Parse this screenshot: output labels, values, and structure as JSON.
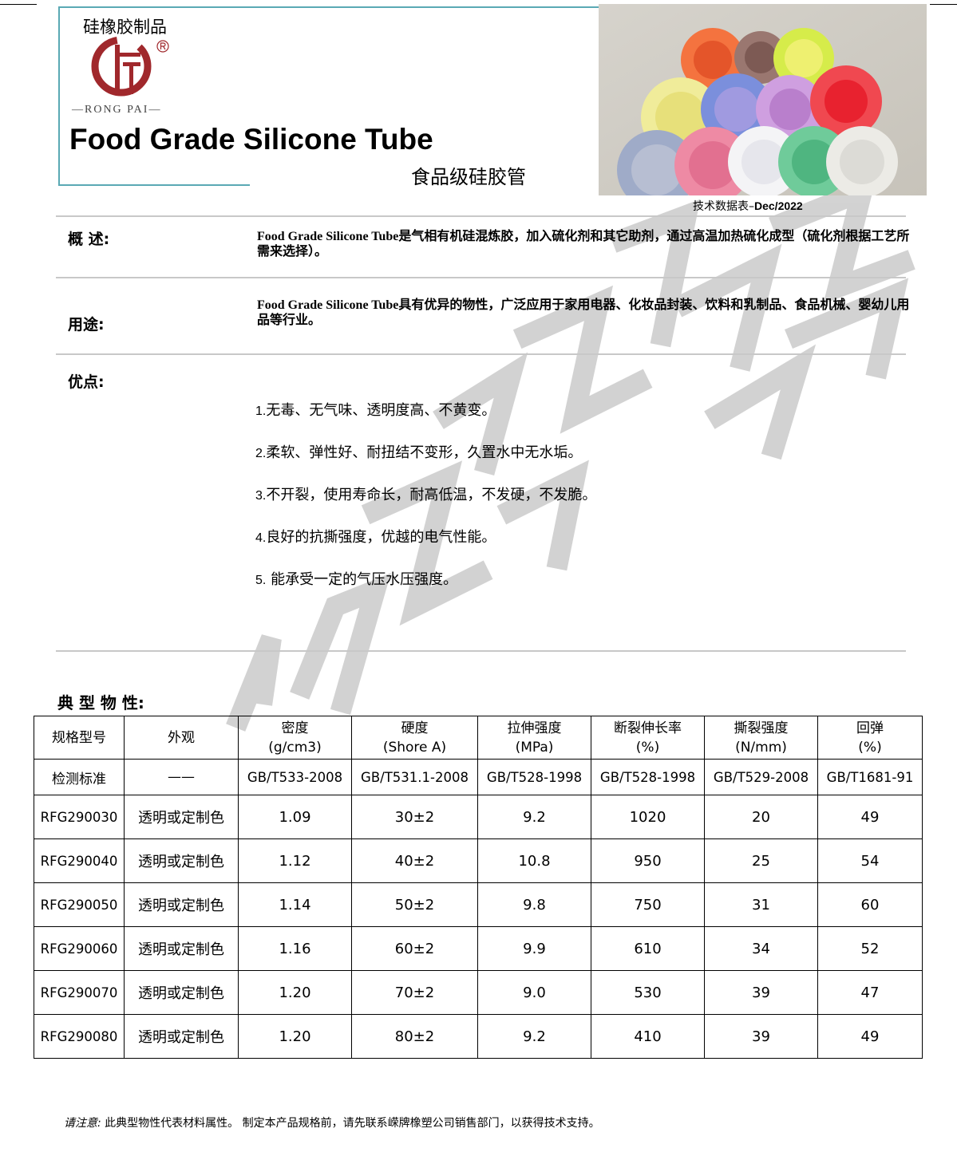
{
  "header": {
    "brand_cn": "硅橡胶制品",
    "brand_en": "—RONG PAI—",
    "registered": "®",
    "logo_text": "嵘",
    "title": "Food Grade Silicone Tube",
    "subtitle": "食品级硅胶管",
    "datasheet_label": "技术数据表–",
    "datasheet_date": "Dec/2022",
    "brand_color": "#a0282c"
  },
  "sections": {
    "overview": {
      "label": "概 述:",
      "text_en": "Food Grade Silicone Tube",
      "text": "是气相有机硅混炼胶，加入硫化剂和其它助剂，通过高温加热硫化成型（硫化剂根据工艺所需来选择）。"
    },
    "usage": {
      "label": "用途:",
      "text_en": "Food Grade Silicone Tube",
      "text": "具有优异的物性，广泛应用于家用电器、化妆品封装、饮料和乳制品、食品机械、婴幼儿用品等行业。"
    },
    "advantages": {
      "label": "优点:",
      "items": [
        {
          "n": "1.",
          "t": "无毒、无气味、透明度高、不黄变。"
        },
        {
          "n": "2.",
          "t": "柔软、弹性好、耐扭结不变形，久置水中无水垢。"
        },
        {
          "n": "3.",
          "t": "不开裂，使用寿命长，耐高低温，不发硬，不发脆。"
        },
        {
          "n": "4.",
          "t": "良好的抗撕强度，优越的电气性能。"
        },
        {
          "n": "5.",
          "t": " 能承受一定的气压水压强度。"
        }
      ]
    }
  },
  "watermark": "嵘牌橡塑",
  "properties": {
    "label": "典 型 物 性:",
    "headers": [
      [
        "规格型号",
        ""
      ],
      [
        "外观",
        ""
      ],
      [
        "密度",
        "(g/cm3)"
      ],
      [
        "硬度",
        "(Shore A)"
      ],
      [
        "拉伸强度",
        "(MPa)"
      ],
      [
        "断裂伸长率",
        "(%)"
      ],
      [
        "撕裂强度",
        "(N/mm)"
      ],
      [
        "回弹",
        "(%)"
      ]
    ],
    "standards": [
      "检测标准",
      "——",
      "GB/T533-2008",
      "GB/T531.1-2008",
      "GB/T528-1998",
      "GB/T528-1998",
      "GB/T529-2008",
      "GB/T1681-91"
    ],
    "rows": [
      [
        "RFG290030",
        "透明或定制色",
        "1.09",
        "30±2",
        "9.2",
        "1020",
        "20",
        "49"
      ],
      [
        "RFG290040",
        "透明或定制色",
        "1.12",
        "40±2",
        "10.8",
        "950",
        "25",
        "54"
      ],
      [
        "RFG290050",
        "透明或定制色",
        "1.14",
        "50±2",
        "9.8",
        "750",
        "31",
        "60"
      ],
      [
        "RFG290060",
        "透明或定制色",
        "1.16",
        "60±2",
        "9.9",
        "610",
        "34",
        "52"
      ],
      [
        "RFG290070",
        "透明或定制色",
        "1.20",
        "70±2",
        "9.0",
        "530",
        "39",
        "47"
      ],
      [
        "RFG290080",
        "透明或定制色",
        "1.20",
        "80±2",
        "9.2",
        "410",
        "39",
        "49"
      ]
    ]
  },
  "note": {
    "label": "请注意:",
    "text": " 此典型物性代表材料属性。 制定本产品规格前，请先联系嵘牌橡塑公司销售部门，以获得技术支持。"
  }
}
